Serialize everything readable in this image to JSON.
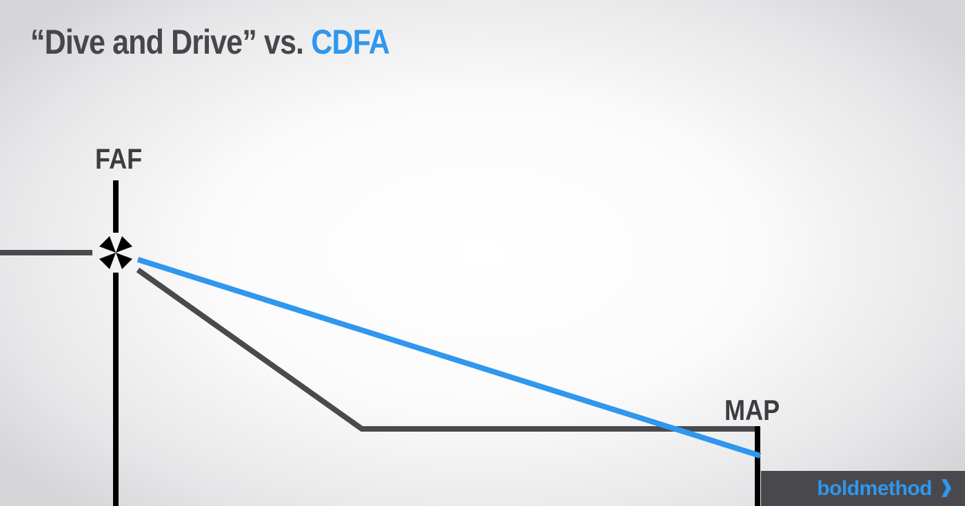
{
  "header": {
    "title_main": "“Dive and Drive” vs.",
    "title_accent": "CDFA"
  },
  "labels": {
    "faf": "FAF",
    "map": "MAP"
  },
  "brand": {
    "name": "boldmethod",
    "arrow_icon": "chevron-right-icon"
  },
  "colors": {
    "dark": "#47474b",
    "accent_blue": "#2f97ee",
    "black": "#000000"
  },
  "paths": [
    {
      "name": "dive-and-drive-path",
      "color": "#4a4a4e"
    },
    {
      "name": "cdfa-path",
      "color": "#2f97ee"
    }
  ]
}
